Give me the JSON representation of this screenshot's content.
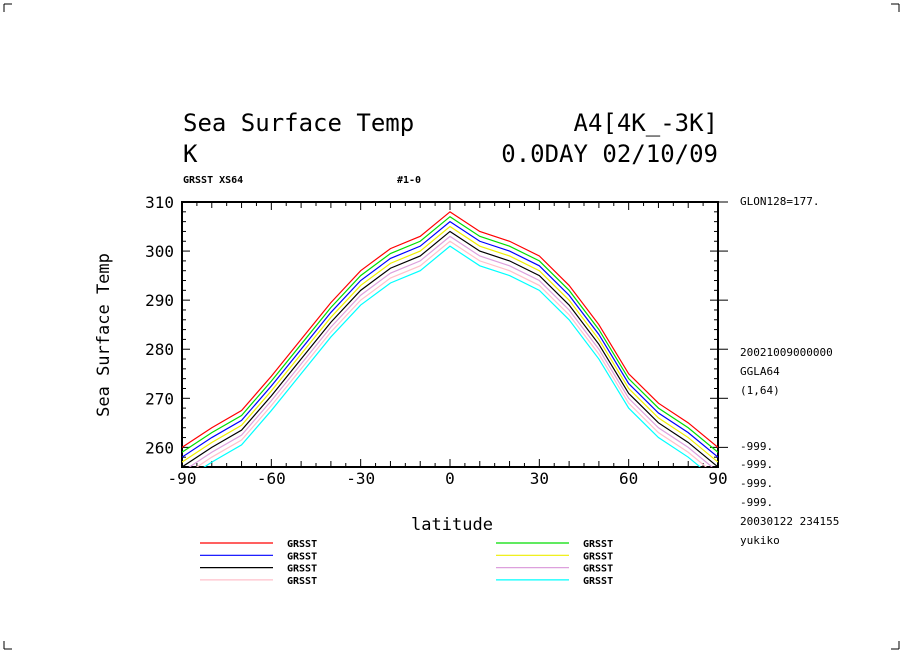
{
  "header": {
    "title": "Sea Surface Temp",
    "experiment": "A4[4K_-3K]",
    "unit": "K",
    "time": "0.0DAY 02/10/09",
    "var_label": "GRSST XS64",
    "run_label": "#1-0"
  },
  "side_info": {
    "lon": "GLON128=177.",
    "date": "20021009000000",
    "grid": "GGLA64",
    "range": "(1,64)",
    "missing": [
      "-999.",
      "-999.",
      "-999.",
      "-999."
    ],
    "created": "20030122 234155",
    "user": "yukiko"
  },
  "chart_data": {
    "type": "line",
    "title": "Sea Surface Temp",
    "xlabel": "latitude",
    "ylabel": "Sea Surface Temp",
    "xlim": [
      -90,
      90
    ],
    "ylim": [
      256,
      310
    ],
    "xticks": [
      -90,
      -60,
      -30,
      0,
      30,
      60,
      90
    ],
    "yticks": [
      260,
      270,
      280,
      290,
      300,
      310
    ],
    "x": [
      -90,
      -80,
      -70,
      -60,
      -50,
      -40,
      -30,
      -20,
      -10,
      0,
      10,
      20,
      30,
      40,
      50,
      60,
      70,
      80,
      90
    ],
    "series": [
      {
        "name": "GRSST",
        "color": "#ff0000",
        "values": [
          260,
          264,
          267.5,
          274.5,
          282,
          289.5,
          296,
          300.5,
          303,
          308,
          304,
          302,
          299,
          293,
          285,
          275,
          269,
          265,
          260
        ]
      },
      {
        "name": "GRSST",
        "color": "#00dd00",
        "values": [
          259,
          263,
          266.5,
          273.5,
          281,
          288.5,
          295,
          299.5,
          302,
          307,
          303,
          301,
          298,
          292,
          284,
          274,
          268,
          264,
          259
        ]
      },
      {
        "name": "GRSST",
        "color": "#0000ff",
        "values": [
          258,
          262,
          265.5,
          272.5,
          280,
          287.5,
          294,
          298.5,
          301,
          306,
          302,
          300,
          297,
          291,
          283,
          273,
          267,
          263,
          258
        ]
      },
      {
        "name": "GRSST",
        "color": "#eeee00",
        "values": [
          257,
          261,
          264.5,
          271.5,
          279,
          286.5,
          293,
          297.5,
          300,
          305,
          301,
          299,
          296,
          290,
          282,
          272,
          266,
          262,
          257
        ]
      },
      {
        "name": "GRSST",
        "color": "#000000",
        "values": [
          256,
          260,
          263.5,
          270.5,
          278,
          285.5,
          292,
          296.5,
          299,
          304,
          300,
          298,
          295,
          289,
          281,
          271,
          265,
          261,
          256
        ]
      },
      {
        "name": "GRSST",
        "color": "#dda0dd",
        "values": [
          255,
          259,
          262.5,
          269.5,
          277,
          284.5,
          291,
          295.5,
          298,
          303,
          299,
          297,
          294,
          288,
          280,
          270,
          264,
          260,
          255
        ]
      },
      {
        "name": "GRSST",
        "color": "#ffc0cb",
        "values": [
          254,
          258,
          261.5,
          268.5,
          276,
          283.5,
          290,
          294.5,
          297,
          302,
          298,
          296,
          293,
          287,
          279,
          269,
          263,
          259,
          254
        ]
      },
      {
        "name": "GRSST",
        "color": "#00ffff",
        "values": [
          253,
          257,
          260.5,
          267.5,
          275,
          282.5,
          289,
          293.5,
          296,
          301,
          297,
          295,
          292,
          286,
          278,
          268,
          262,
          258,
          253
        ]
      }
    ],
    "legend_order": [
      0,
      2,
      4,
      6,
      1,
      3,
      5,
      7
    ],
    "legend": "bottom",
    "grid": false
  }
}
